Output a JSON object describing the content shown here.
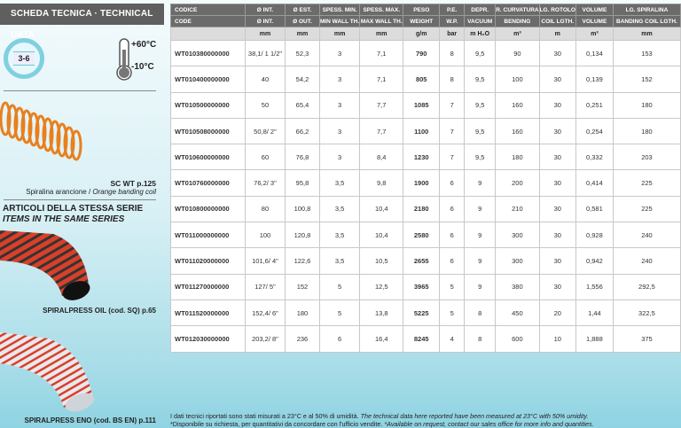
{
  "left": {
    "title": "SCHEDA TECNICA · TECHNICAL DATA",
    "pressure_badge": "3-6",
    "temp_max": "+60°C",
    "temp_min": "-10°C",
    "coil_name": "SC WT p.125",
    "coil_desc_it": "Spiralina arancione / ",
    "coil_desc_en": "Orange banding coil",
    "series_it": "ARTICOLI DELLA STESSA SERIE",
    "series_en": "ITEMS IN THE SAME SERIES",
    "item1": "SPIRALPRESS OIL (cod. SQ) p.65",
    "item2": "SPIRALPRESS ENO (cod. BS EN) p.111"
  },
  "table": {
    "header_it": [
      "CODICE",
      "Ø INT.",
      "Ø EST.",
      "SPESS. MIN.",
      "SPESS. MAX.",
      "PESO",
      "P.E.",
      "DEPR.",
      "R. CURVATURA",
      "LG. ROTOLO",
      "VOLUME",
      "LG. SPIRALINA"
    ],
    "header_en": [
      "CODE",
      "Ø INT.",
      "Ø OUT.",
      "MIN WALL TH.",
      "MAX WALL TH.",
      "WEIGHT",
      "W.P.",
      "VACUUM",
      "BENDING",
      "COIL LGTH.",
      "VOLUME",
      "BANDING COIL LGTH."
    ],
    "units": [
      "",
      "mm",
      "mm",
      "mm",
      "mm",
      "g/m",
      "bar",
      "m H₂O",
      "m³",
      "m",
      "m³",
      "mm"
    ],
    "rows": [
      [
        "WT010380000000",
        "38,1/ 1 1/2\"",
        "52,3",
        "3",
        "7,1",
        "790",
        "8",
        "9,5",
        "90",
        "30",
        "0,134",
        "153"
      ],
      [
        "WT010400000000",
        "40",
        "54,2",
        "3",
        "7,1",
        "805",
        "8",
        "9,5",
        "100",
        "30",
        "0,139",
        "152"
      ],
      [
        "WT010500000000",
        "50",
        "65,4",
        "3",
        "7,7",
        "1085",
        "7",
        "9,5",
        "160",
        "30",
        "0,251",
        "180"
      ],
      [
        "WT010508000000",
        "50,8/ 2\"",
        "66,2",
        "3",
        "7,7",
        "1100",
        "7",
        "9,5",
        "160",
        "30",
        "0,254",
        "180"
      ],
      [
        "WT010600000000",
        "60",
        "76,8",
        "3",
        "8,4",
        "1230",
        "7",
        "9,5",
        "180",
        "30",
        "0,332",
        "203"
      ],
      [
        "WT010760000000",
        "76,2/ 3\"",
        "95,8",
        "3,5",
        "9,8",
        "1900",
        "6",
        "9",
        "200",
        "30",
        "0,414",
        "225"
      ],
      [
        "WT010800000000",
        "80",
        "100,8",
        "3,5",
        "10,4",
        "2180",
        "6",
        "9",
        "210",
        "30",
        "0,581",
        "225"
      ],
      [
        "WT011000000000",
        "100",
        "120,8",
        "3,5",
        "10,4",
        "2580",
        "6",
        "9",
        "300",
        "30",
        "0,928",
        "240"
      ],
      [
        "WT011020000000",
        "101,6/ 4\"",
        "122,6",
        "3,5",
        "10,5",
        "2655",
        "6",
        "9",
        "300",
        "30",
        "0,942",
        "240"
      ],
      [
        "WT011270000000",
        "127/ 5\"",
        "152",
        "5",
        "12,5",
        "3965",
        "5",
        "9",
        "380",
        "30",
        "1,556",
        "292,5"
      ],
      [
        "WT011520000000",
        "152,4/ 6\"",
        "180",
        "5",
        "13,8",
        "5225",
        "5",
        "8",
        "450",
        "20",
        "1,44",
        "322,5"
      ],
      [
        "WT012030000000",
        "203,2/ 8\"",
        "236",
        "6",
        "16,4",
        "8245",
        "4",
        "8",
        "600",
        "10",
        "1,888",
        "375"
      ]
    ]
  },
  "footer": {
    "line1_it": "I dati tecnici riportati sono stati misurati a 23°C e al 50% di umidità. ",
    "line1_en": "The technical data here reported have been measured at 23°C with 50% umidity.",
    "line2_it": "*Disponibile su richiesta, per quantitativi da concordare con l'ufficio vendite. ",
    "line2_en": "*Available on request, contact our sales office for more info and quantities."
  },
  "colors": {
    "accent": "#8fd3e2",
    "header": "#6b6b6b",
    "coil": "#e8801e",
    "hose_red": "#d8402a"
  }
}
